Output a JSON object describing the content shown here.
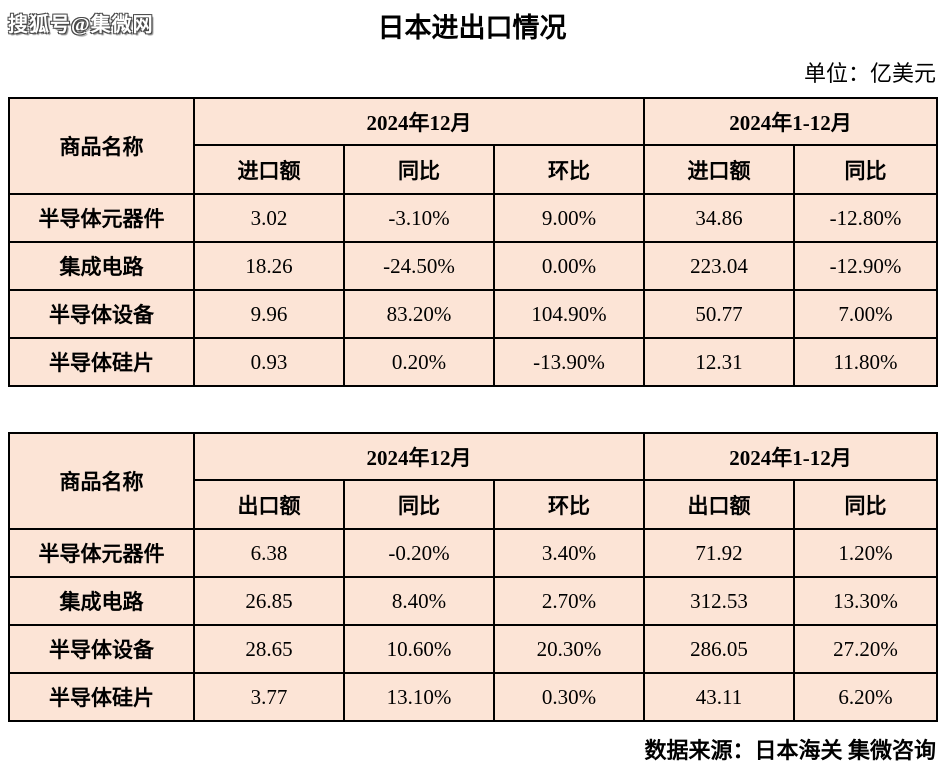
{
  "page": {
    "watermark": "搜狐号@集微网",
    "title": "日本进出口情况",
    "unit_label": "单位：亿美元",
    "source_label": "数据来源：日本海关 集微咨询"
  },
  "colors": {
    "cell_bg": "#FCE4D6",
    "border": "#000000",
    "page_bg": "#FFFFFF",
    "text": "#000000"
  },
  "tables": [
    {
      "id": "import",
      "header": {
        "product": "商品名称",
        "group_month": "2024年12月",
        "group_year": "2024年1-12月",
        "sub": [
          "进口额",
          "同比",
          "环比",
          "进口额",
          "同比"
        ]
      },
      "rows": [
        {
          "product": "半导体元器件",
          "values": [
            "3.02",
            "-3.10%",
            "9.00%",
            "34.86",
            "-12.80%"
          ]
        },
        {
          "product": "集成电路",
          "values": [
            "18.26",
            "-24.50%",
            "0.00%",
            "223.04",
            "-12.90%"
          ]
        },
        {
          "product": "半导体设备",
          "values": [
            "9.96",
            "83.20%",
            "104.90%",
            "50.77",
            "7.00%"
          ]
        },
        {
          "product": "半导体硅片",
          "values": [
            "0.93",
            "0.20%",
            "-13.90%",
            "12.31",
            "11.80%"
          ]
        }
      ]
    },
    {
      "id": "export",
      "header": {
        "product": "商品名称",
        "group_month": "2024年12月",
        "group_year": "2024年1-12月",
        "sub": [
          "出口额",
          "同比",
          "环比",
          "出口额",
          "同比"
        ]
      },
      "rows": [
        {
          "product": "半导体元器件",
          "values": [
            "6.38",
            "-0.20%",
            "3.40%",
            "71.92",
            "1.20%"
          ]
        },
        {
          "product": "集成电路",
          "values": [
            "26.85",
            "8.40%",
            "2.70%",
            "312.53",
            "13.30%"
          ]
        },
        {
          "product": "半导体设备",
          "values": [
            "28.65",
            "10.60%",
            "20.30%",
            "286.05",
            "27.20%"
          ]
        },
        {
          "product": "半导体硅片",
          "values": [
            "3.77",
            "13.10%",
            "0.30%",
            "43.11",
            "6.20%"
          ]
        }
      ]
    }
  ]
}
